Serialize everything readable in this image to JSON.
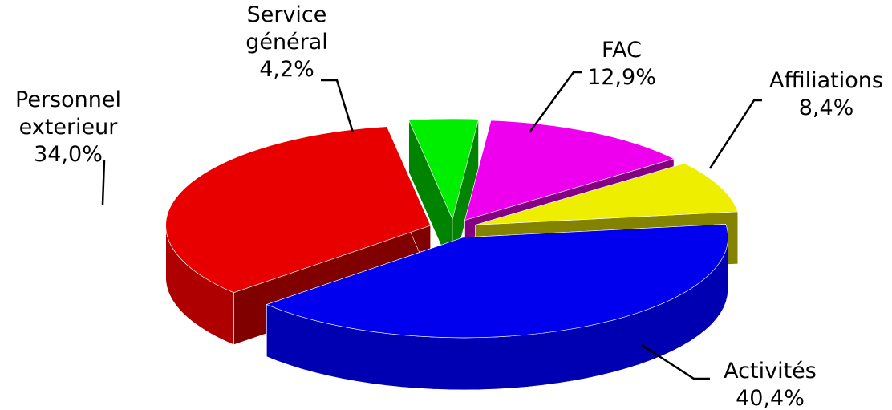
{
  "chart_data": {
    "type": "pie3d",
    "categories": [
      "Personnel exterieur",
      "Service général",
      "FAC",
      "Affiliations",
      "Activités"
    ],
    "values": [
      34.0,
      4.2,
      12.9,
      8.4,
      40.4
    ],
    "value_labels": [
      "34,0%",
      "4,2%",
      "12,9%",
      "8,4%",
      "40,4%"
    ],
    "colors": [
      "#e80000",
      "#00ee00",
      "#ee00ee",
      "#eeee00",
      "#0000ee"
    ]
  }
}
